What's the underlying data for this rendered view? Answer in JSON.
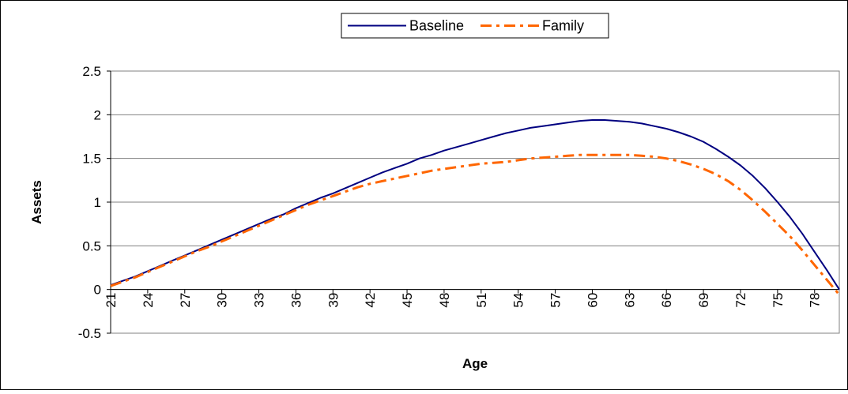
{
  "chart_data": {
    "type": "line",
    "xlabel": "Age",
    "ylabel": "Assets",
    "ylim": [
      -0.5,
      2.5
    ],
    "yticks": [
      "-0.5",
      "0",
      "0.5",
      "1",
      "1.5",
      "2",
      "2.5"
    ],
    "xticks": [
      21,
      24,
      27,
      30,
      33,
      36,
      39,
      42,
      45,
      48,
      51,
      54,
      57,
      60,
      63,
      66,
      69,
      72,
      75,
      78
    ],
    "xlim": [
      21,
      80
    ],
    "legend_position": "top-center",
    "grid": "horizontal",
    "x": [
      21,
      22,
      23,
      24,
      25,
      26,
      27,
      28,
      29,
      30,
      31,
      32,
      33,
      34,
      35,
      36,
      37,
      38,
      39,
      40,
      41,
      42,
      43,
      44,
      45,
      46,
      47,
      48,
      49,
      50,
      51,
      52,
      53,
      54,
      55,
      56,
      57,
      58,
      59,
      60,
      61,
      62,
      63,
      64,
      65,
      66,
      67,
      68,
      69,
      70,
      71,
      72,
      73,
      74,
      75,
      76,
      77,
      78,
      79,
      80
    ],
    "series": [
      {
        "name": "Baseline",
        "color": "#000080",
        "style": "solid",
        "values": [
          0.05,
          0.1,
          0.15,
          0.21,
          0.27,
          0.33,
          0.39,
          0.45,
          0.51,
          0.57,
          0.63,
          0.69,
          0.75,
          0.81,
          0.86,
          0.93,
          0.99,
          1.05,
          1.1,
          1.16,
          1.22,
          1.28,
          1.34,
          1.39,
          1.44,
          1.5,
          1.54,
          1.59,
          1.63,
          1.67,
          1.71,
          1.75,
          1.79,
          1.82,
          1.85,
          1.87,
          1.89,
          1.91,
          1.93,
          1.94,
          1.94,
          1.93,
          1.92,
          1.9,
          1.87,
          1.84,
          1.8,
          1.75,
          1.69,
          1.61,
          1.52,
          1.42,
          1.3,
          1.16,
          1.0,
          0.83,
          0.64,
          0.43,
          0.22,
          0.0
        ]
      },
      {
        "name": "Family",
        "color": "#FF6600",
        "style": "dashdot",
        "values": [
          0.04,
          0.09,
          0.14,
          0.2,
          0.26,
          0.32,
          0.38,
          0.44,
          0.49,
          0.55,
          0.61,
          0.67,
          0.73,
          0.79,
          0.85,
          0.91,
          0.97,
          1.02,
          1.07,
          1.12,
          1.17,
          1.21,
          1.24,
          1.27,
          1.3,
          1.33,
          1.36,
          1.38,
          1.4,
          1.42,
          1.44,
          1.45,
          1.46,
          1.48,
          1.5,
          1.51,
          1.52,
          1.53,
          1.54,
          1.54,
          1.54,
          1.54,
          1.54,
          1.53,
          1.52,
          1.5,
          1.47,
          1.43,
          1.38,
          1.32,
          1.24,
          1.14,
          1.02,
          0.89,
          0.75,
          0.61,
          0.45,
          0.28,
          0.11,
          -0.06
        ]
      }
    ]
  }
}
